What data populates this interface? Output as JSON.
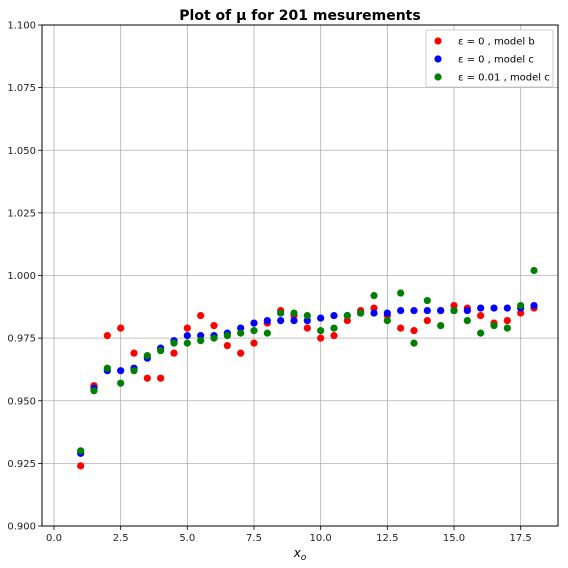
{
  "chart_data": {
    "type": "scatter",
    "title": "Plot of μ for 201 mesurements",
    "xlabel": "x_o",
    "ylabel": "",
    "xlim": [
      -0.45,
      18.9
    ],
    "ylim": [
      0.9,
      1.1
    ],
    "xticks": [
      0.0,
      2.5,
      5.0,
      7.5,
      10.0,
      12.5,
      15.0,
      17.5
    ],
    "xtick_labels": [
      "0.0",
      "2.5",
      "5.0",
      "7.5",
      "10.0",
      "12.5",
      "15.0",
      "17.5"
    ],
    "yticks": [
      0.9,
      0.925,
      0.95,
      0.975,
      1.0,
      1.025,
      1.05,
      1.075,
      1.1
    ],
    "ytick_labels": [
      "0.900",
      "0.925",
      "0.950",
      "0.975",
      "1.000",
      "1.025",
      "1.050",
      "1.075",
      "1.100"
    ],
    "grid": true,
    "legend_position": "top-right",
    "x": [
      1.0,
      1.5,
      2.0,
      2.5,
      3.0,
      3.5,
      4.0,
      4.5,
      5.0,
      5.5,
      6.0,
      6.5,
      7.0,
      7.5,
      8.0,
      8.5,
      9.0,
      9.5,
      10.0,
      10.5,
      11.0,
      11.5,
      12.0,
      12.5,
      13.0,
      13.5,
      14.0,
      14.5,
      15.0,
      15.5,
      16.0,
      16.5,
      17.0,
      17.5,
      18.0
    ],
    "series": [
      {
        "name": "ε = 0 , model b",
        "color": "#ff0000",
        "values": [
          0.924,
          0.956,
          0.976,
          0.979,
          0.969,
          0.959,
          0.959,
          0.969,
          0.979,
          0.984,
          0.98,
          0.972,
          0.969,
          0.973,
          0.981,
          0.986,
          0.984,
          0.979,
          0.975,
          0.976,
          0.982,
          0.986,
          0.987,
          0.984,
          0.979,
          0.978,
          0.982,
          0.986,
          0.988,
          0.987,
          0.984,
          0.981,
          0.982,
          0.985,
          0.987
        ]
      },
      {
        "name": "ε = 0 , model c",
        "color": "#0000ff",
        "values": [
          0.929,
          0.955,
          0.962,
          0.962,
          0.963,
          0.967,
          0.971,
          0.974,
          0.976,
          0.976,
          0.976,
          0.977,
          0.979,
          0.981,
          0.982,
          0.982,
          0.982,
          0.982,
          0.983,
          0.984,
          0.984,
          0.985,
          0.985,
          0.985,
          0.986,
          0.986,
          0.986,
          0.986,
          0.986,
          0.986,
          0.987,
          0.987,
          0.987,
          0.987,
          0.988
        ]
      },
      {
        "name": "ε = 0.01 , model c",
        "color": "#008000",
        "values": [
          0.93,
          0.954,
          0.963,
          0.957,
          0.962,
          0.968,
          0.97,
          0.973,
          0.973,
          0.974,
          0.975,
          0.976,
          0.977,
          0.978,
          0.977,
          0.985,
          0.985,
          0.984,
          0.978,
          0.979,
          0.984,
          0.985,
          0.992,
          0.982,
          0.993,
          0.973,
          0.99,
          0.98,
          0.986,
          0.982,
          0.977,
          0.98,
          0.979,
          0.988,
          1.002
        ]
      }
    ]
  }
}
